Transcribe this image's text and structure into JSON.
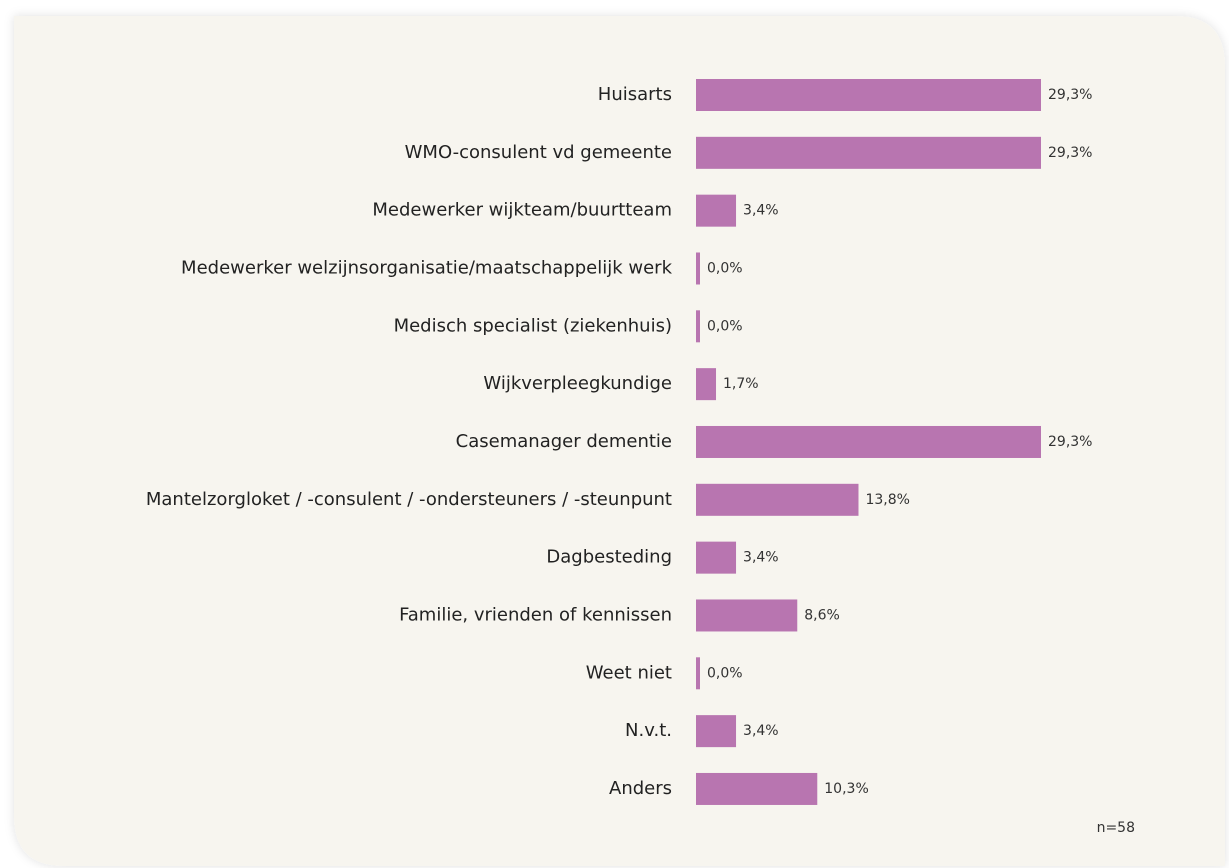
{
  "chart_data": {
    "type": "bar",
    "orientation": "horizontal",
    "categories": [
      "Huisarts",
      "WMO-consulent vd gemeente",
      "Medewerker wijkteam/buurtteam",
      "Medewerker welzijnsorganisatie/maatschappelijk werk",
      "Medisch specialist (ziekenhuis)",
      "Wijkverpleegkundige",
      "Casemanager dementie",
      "Mantelzorgloket / -consulent / -ondersteuners / -steunpunt",
      "Dagbesteding",
      "Familie, vrienden of kennissen",
      "Weet niet",
      "N.v.t.",
      "Anders"
    ],
    "values": [
      29.3,
      29.3,
      3.4,
      0,
      0,
      1.7,
      29.3,
      13.8,
      3.4,
      8.6,
      0,
      3.4,
      10.3
    ],
    "value_labels": [
      "29,3%",
      "29,3%",
      "3,4%",
      "0,0%",
      "0,0%",
      "1,7%",
      "29,3%",
      "13,8%",
      "3,4%",
      "8,6%",
      "0,0%",
      "3,4%",
      "10,3%"
    ],
    "color": "#b875b0",
    "annotation": "n=58"
  }
}
